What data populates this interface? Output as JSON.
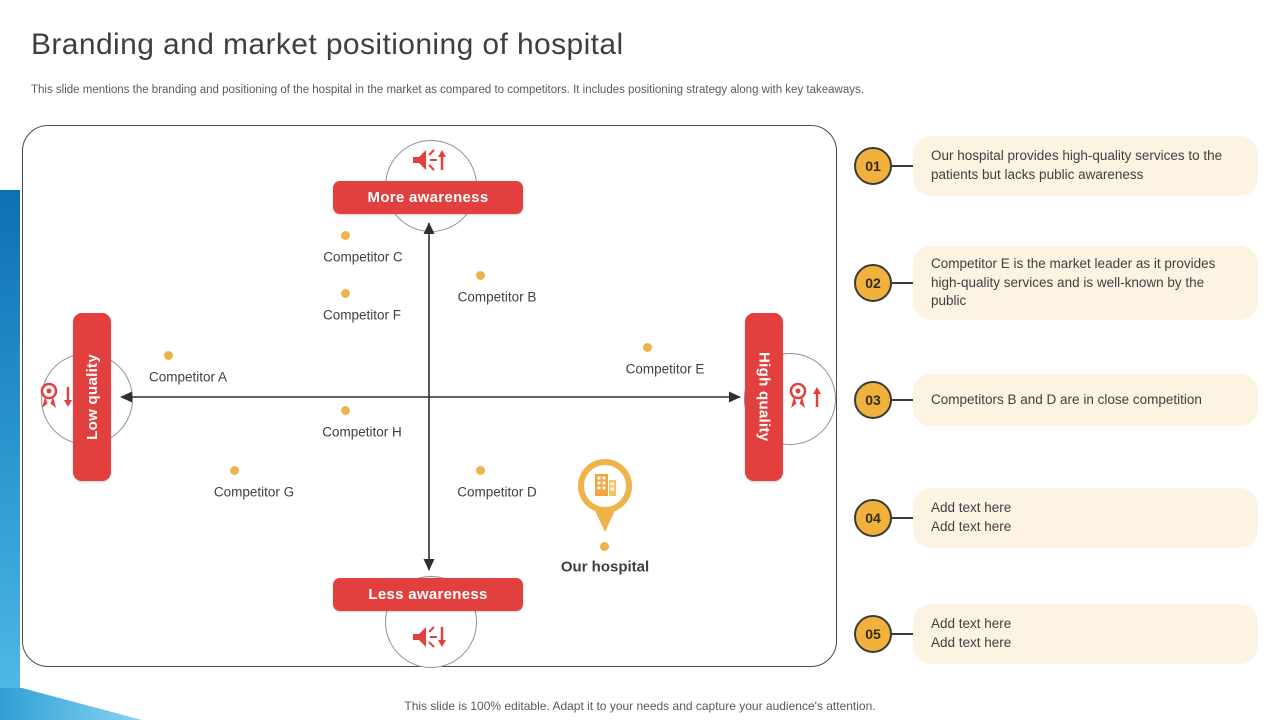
{
  "slide": {
    "title": "Branding and market positioning of hospital",
    "subtitle": "This slide mentions the branding and positioning of the hospital in the market as compared to competitors. It includes positioning strategy along with key takeaways.",
    "footer": "This slide is 100% editable. Adapt it to your needs and capture your audience's attention."
  },
  "matrix": {
    "axis_labels": {
      "top": "More awareness",
      "bottom": "Less awareness",
      "left": "Low quality",
      "right": "High quality"
    },
    "icons": {
      "top": "megaphone-up-icon",
      "bottom": "megaphone-down-icon",
      "left": "medal-down-icon",
      "right": "medal-up-icon"
    },
    "points": [
      {
        "label": "Competitor C",
        "dot": [
          345,
          235
        ],
        "text": [
          363,
          257
        ]
      },
      {
        "label": "Competitor B",
        "dot": [
          480,
          275
        ],
        "text": [
          497,
          297
        ]
      },
      {
        "label": "Competitor F",
        "dot": [
          345,
          293
        ],
        "text": [
          362,
          315
        ]
      },
      {
        "label": "Competitor A",
        "dot": [
          168,
          355
        ],
        "text": [
          188,
          377
        ]
      },
      {
        "label": "Competitor E",
        "dot": [
          647,
          347
        ],
        "text": [
          665,
          369
        ]
      },
      {
        "label": "Competitor H",
        "dot": [
          345,
          410
        ],
        "text": [
          362,
          432
        ]
      },
      {
        "label": "Competitor G",
        "dot": [
          234,
          470
        ],
        "text": [
          254,
          492
        ]
      },
      {
        "label": "Competitor D",
        "dot": [
          480,
          470
        ],
        "text": [
          497,
          492
        ]
      }
    ],
    "our_hospital": {
      "label": "Our hospital",
      "dot": [
        605,
        547
      ]
    }
  },
  "takeaways": [
    {
      "number": "01",
      "text": "Our hospital provides high-quality services to the patients but lacks public awareness"
    },
    {
      "number": "02",
      "text": "Competitor E is the market leader as it provides high-quality services and is well-known by the public"
    },
    {
      "number": "03",
      "text": "Competitors B and D are in close competition"
    },
    {
      "number": "04",
      "text": "Add text here\nAdd text here"
    },
    {
      "number": "05",
      "text": "Add text here\nAdd text here"
    }
  ],
  "colors": {
    "red": "#e2403f",
    "yellow_dot": "#eeb44a",
    "badge_yellow": "#f1b13d",
    "cream_box": "#fcf3e2",
    "blue_dark": "#0f6fb4",
    "blue_light": "#55bce8",
    "text_dark": "#3f3f3f",
    "text_gray": "#595959"
  }
}
